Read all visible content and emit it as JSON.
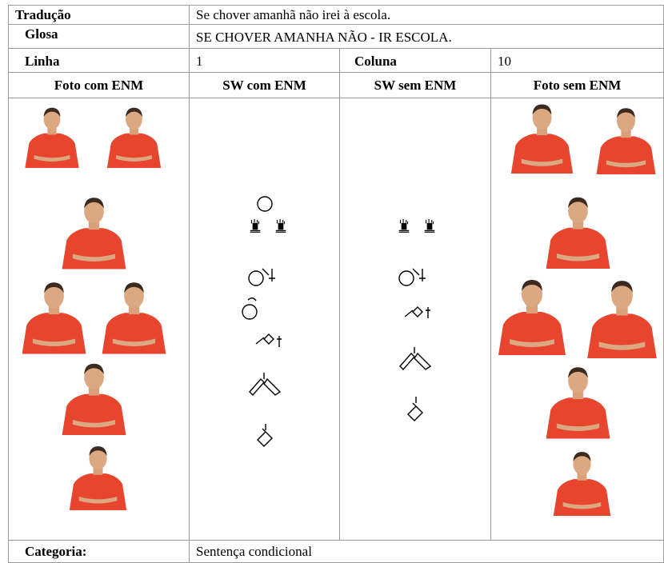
{
  "translation": {
    "label": "Tradução",
    "text": "Se chover amanhã não irei à escola."
  },
  "gloss": {
    "label": "Glosa",
    "text": "SE CHOVER AMANHA NÃO - IR ESCOLA."
  },
  "position": {
    "line_label": "Linha",
    "line": 1,
    "column_label": "Coluna",
    "column": 10
  },
  "headers": [
    "Foto com ENM",
    "SW com ENM",
    "SW sem ENM",
    "Foto sem ENM"
  ],
  "category": {
    "label": "Categoria:",
    "text": "Sentença condicional"
  }
}
